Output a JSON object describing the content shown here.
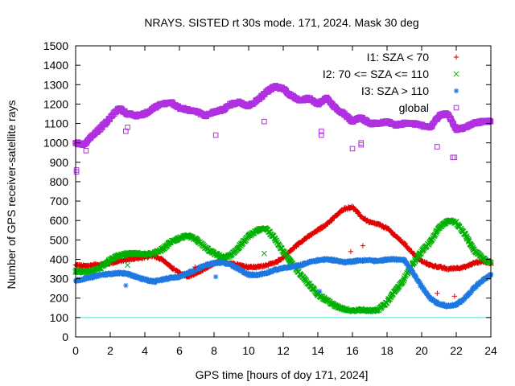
{
  "chart_data": {
    "type": "scatter",
    "title": "NRAYS. SISTED rt 30s mode. 171, 2024. Mask 30 deg",
    "xlabel": "GPS time [hours of doy 171, 2024]",
    "ylabel": "Number of GPS receiver-satellite rays",
    "xlim": [
      0,
      24
    ],
    "ylim": [
      0,
      1500
    ],
    "x_ticks": [
      0,
      2,
      4,
      6,
      8,
      10,
      12,
      14,
      16,
      18,
      20,
      22,
      24
    ],
    "x_tick_labels": [
      "0",
      "2",
      "4",
      "6",
      "8",
      "10",
      "12",
      "14",
      "16",
      "18",
      "20",
      "22",
      "24"
    ],
    "y_ticks": [
      0,
      100,
      200,
      300,
      400,
      500,
      600,
      700,
      800,
      900,
      1000,
      1100,
      1200,
      1300,
      1400,
      1500
    ],
    "y_tick_labels": [
      "0",
      "100",
      "200",
      "300",
      "400",
      "500",
      "600",
      "700",
      "800",
      "900",
      "1000",
      "1100",
      "1200",
      "1300",
      "1400",
      "1500"
    ],
    "grid": false,
    "legend_position": "top-right",
    "reference_line": {
      "y": 100,
      "color": "#40e0d0"
    },
    "series": [
      {
        "name": "I1: SZA < 70",
        "marker": "plus",
        "color": "#e00000",
        "x": [
          0,
          0.5,
          1,
          1.5,
          2,
          2.5,
          3,
          3.5,
          4,
          4.5,
          5,
          5.5,
          6,
          6.5,
          7,
          7.5,
          8,
          8.5,
          9,
          9.5,
          10,
          10.5,
          11,
          11.5,
          12,
          12.5,
          13,
          13.5,
          14,
          14.5,
          15,
          15.5,
          16,
          16.5,
          17,
          17.5,
          18,
          18.5,
          19,
          19.5,
          20,
          20.5,
          21,
          21.5,
          22,
          22.5,
          23,
          23.5,
          24
        ],
        "y": [
          370,
          365,
          370,
          375,
          380,
          390,
          400,
          405,
          410,
          420,
          400,
          360,
          330,
          310,
          330,
          350,
          380,
          385,
          380,
          370,
          360,
          360,
          370,
          380,
          410,
          450,
          490,
          520,
          550,
          580,
          620,
          660,
          670,
          620,
          590,
          580,
          560,
          520,
          480,
          430,
          390,
          370,
          360,
          350,
          355,
          360,
          380,
          390,
          380
        ]
      },
      {
        "name": "I2: 70 <= SZA <= 110",
        "marker": "cross",
        "color": "#00b000",
        "x": [
          0,
          0.5,
          1,
          1.5,
          2,
          2.5,
          3,
          3.5,
          4,
          4.5,
          5,
          5.5,
          6,
          6.5,
          7,
          7.5,
          8,
          8.5,
          9,
          9.5,
          10,
          10.5,
          11,
          11.5,
          12,
          12.5,
          13,
          13.5,
          14,
          14.5,
          15,
          15.5,
          16,
          16.5,
          17,
          17.5,
          18,
          18.5,
          19,
          19.5,
          20,
          20.5,
          21,
          21.5,
          22,
          22.5,
          23,
          23.5,
          24
        ],
        "y": [
          340,
          335,
          340,
          360,
          400,
          420,
          430,
          430,
          425,
          430,
          450,
          490,
          510,
          520,
          500,
          460,
          430,
          410,
          420,
          470,
          520,
          550,
          560,
          510,
          440,
          380,
          320,
          270,
          220,
          190,
          160,
          145,
          135,
          140,
          135,
          140,
          180,
          240,
          300,
          380,
          440,
          490,
          560,
          600,
          590,
          530,
          450,
          410,
          380
        ]
      },
      {
        "name": "I3: SZA > 110",
        "marker": "star",
        "color": "#1e78e0",
        "x": [
          0,
          0.5,
          1,
          1.5,
          2,
          2.5,
          3,
          3.5,
          4,
          4.5,
          5,
          5.5,
          6,
          6.5,
          7,
          7.5,
          8,
          8.5,
          9,
          9.5,
          10,
          10.5,
          11,
          11.5,
          12,
          12.5,
          13,
          13.5,
          14,
          14.5,
          15,
          15.5,
          16,
          16.5,
          17,
          17.5,
          18,
          18.5,
          19,
          19.5,
          20,
          20.5,
          21,
          21.5,
          22,
          22.5,
          23,
          23.5,
          24
        ],
        "y": [
          290,
          300,
          310,
          320,
          325,
          330,
          325,
          310,
          295,
          285,
          295,
          305,
          310,
          330,
          350,
          370,
          380,
          385,
          370,
          345,
          320,
          320,
          330,
          345,
          355,
          360,
          370,
          385,
          395,
          400,
          395,
          385,
          390,
          395,
          395,
          390,
          400,
          400,
          395,
          330,
          260,
          200,
          170,
          160,
          165,
          200,
          250,
          290,
          320
        ]
      },
      {
        "name": "global",
        "marker": "square",
        "color": "#b030e0",
        "x": [
          0,
          0.5,
          1,
          1.5,
          2,
          2.5,
          3,
          3.5,
          4,
          4.5,
          5,
          5.5,
          6,
          6.5,
          7,
          7.5,
          8,
          8.5,
          9,
          9.5,
          10,
          10.5,
          11,
          11.5,
          12,
          12.5,
          13,
          13.5,
          14,
          14.5,
          15,
          15.5,
          16,
          16.5,
          17,
          17.5,
          18,
          18.5,
          19,
          19.5,
          20,
          20.5,
          21,
          21.5,
          22,
          22.5,
          23,
          23.5,
          24
        ],
        "y": [
          1000,
          990,
          1040,
          1080,
          1130,
          1180,
          1150,
          1140,
          1150,
          1180,
          1200,
          1210,
          1180,
          1170,
          1160,
          1140,
          1160,
          1170,
          1200,
          1210,
          1190,
          1220,
          1260,
          1290,
          1280,
          1240,
          1220,
          1230,
          1200,
          1230,
          1180,
          1150,
          1110,
          1130,
          1100,
          1100,
          1110,
          1090,
          1100,
          1100,
          1090,
          1080,
          1140,
          1150,
          1070,
          1080,
          1100,
          1110,
          1110
        ]
      }
    ],
    "outliers": [
      {
        "series": 0,
        "x": 6.9,
        "y": 360
      },
      {
        "series": 0,
        "x": 15.9,
        "y": 440
      },
      {
        "series": 0,
        "x": 16.6,
        "y": 470
      },
      {
        "series": 0,
        "x": 20.9,
        "y": 225
      },
      {
        "series": 0,
        "x": 21.9,
        "y": 210
      },
      {
        "series": 1,
        "x": 3.0,
        "y": 370
      },
      {
        "series": 1,
        "x": 10.9,
        "y": 430
      },
      {
        "series": 2,
        "x": 2.9,
        "y": 265
      },
      {
        "series": 2,
        "x": 8.1,
        "y": 310
      },
      {
        "series": 2,
        "x": 14.1,
        "y": 235
      },
      {
        "series": 3,
        "x": 0.05,
        "y": 860
      },
      {
        "series": 3,
        "x": 0.05,
        "y": 850
      },
      {
        "series": 3,
        "x": 0.6,
        "y": 960
      },
      {
        "series": 3,
        "x": 2.9,
        "y": 1060
      },
      {
        "series": 3,
        "x": 3.0,
        "y": 1080
      },
      {
        "series": 3,
        "x": 8.1,
        "y": 1040
      },
      {
        "series": 3,
        "x": 10.9,
        "y": 1110
      },
      {
        "series": 3,
        "x": 14.2,
        "y": 1040
      },
      {
        "series": 3,
        "x": 14.2,
        "y": 1060
      },
      {
        "series": 3,
        "x": 16.0,
        "y": 970
      },
      {
        "series": 3,
        "x": 16.5,
        "y": 990
      },
      {
        "series": 3,
        "x": 16.5,
        "y": 1000
      },
      {
        "series": 3,
        "x": 20.9,
        "y": 980
      },
      {
        "series": 3,
        "x": 21.8,
        "y": 925
      },
      {
        "series": 3,
        "x": 21.9,
        "y": 925
      }
    ]
  }
}
